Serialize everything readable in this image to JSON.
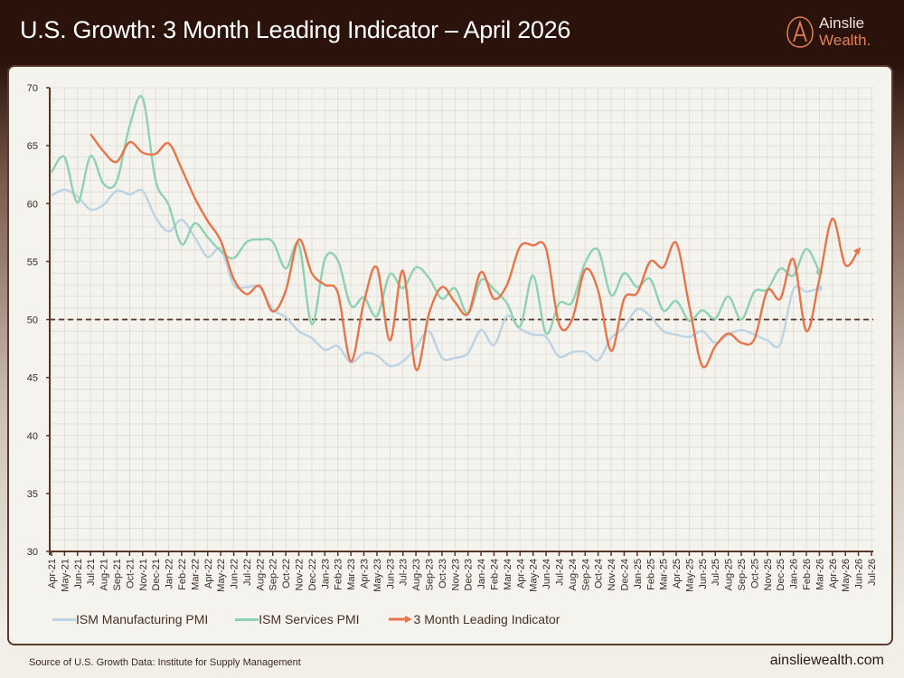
{
  "header": {
    "title": "U.S. Growth: 3 Month Leading Indicator – April 2026"
  },
  "logo": {
    "line1": "Ainslie",
    "line2": "Wealth.",
    "brand_color": "#e0805a"
  },
  "footer": {
    "source": "Source of U.S. Growth Data: Institute for Supply Management",
    "website": "ainsliewealth.com"
  },
  "chart_data": {
    "type": "line",
    "title": "U.S. Growth: 3 Month Leading Indicator – April 2026",
    "xlabel": "",
    "ylabel": "",
    "ylim": [
      30,
      70
    ],
    "yticks": [
      30,
      35,
      40,
      45,
      50,
      55,
      60,
      65,
      70
    ],
    "reference_line": {
      "value": 50,
      "style": "dashed",
      "color": "#5a3424"
    },
    "grid": true,
    "legend_position": "bottom-left",
    "categories": [
      "Apr-21",
      "May-21",
      "Jun-21",
      "Jul-21",
      "Aug-21",
      "Sep-21",
      "Oct-21",
      "Nov-21",
      "Dec-21",
      "Jan-22",
      "Feb-22",
      "Mar-22",
      "Apr-22",
      "May-22",
      "Jun-22",
      "Jul-22",
      "Aug-22",
      "Sep-22",
      "Oct-22",
      "Nov-22",
      "Dec-22",
      "Jan-23",
      "Feb-23",
      "Mar-23",
      "Apr-23",
      "May-23",
      "Jun-23",
      "Jul-23",
      "Aug-23",
      "Sep-23",
      "Oct-23",
      "Nov-23",
      "Dec-23",
      "Jan-24",
      "Feb-24",
      "Mar-24",
      "Apr-24",
      "May-24",
      "Jun-24",
      "Jul-24",
      "Aug-24",
      "Sep-24",
      "Oct-24",
      "Nov-24",
      "Dec-24",
      "Jan-25",
      "Feb-25",
      "Mar-25",
      "Apr-25",
      "May-25",
      "Jun-25",
      "Jul-25",
      "Aug-25",
      "Sep-25",
      "Oct-25",
      "Nov-25",
      "Dec-25",
      "Jan-26",
      "Feb-26",
      "Mar-26",
      "Apr-26",
      "May-26",
      "Jun-26",
      "Jul-26"
    ],
    "series": [
      {
        "name": "ISM Manufacturing PMI",
        "color": "#bcd3e4",
        "end_marker": "dot",
        "values": [
          60.7,
          61.2,
          60.6,
          59.5,
          59.9,
          61.1,
          60.8,
          61.1,
          58.8,
          57.6,
          58.6,
          57.1,
          55.4,
          56.1,
          53.0,
          52.8,
          52.8,
          50.9,
          50.2,
          49.0,
          48.4,
          47.4,
          47.7,
          46.3,
          47.1,
          46.9,
          46.0,
          46.4,
          47.6,
          49.0,
          46.7,
          46.7,
          47.1,
          49.1,
          47.8,
          50.3,
          49.2,
          48.7,
          48.5,
          46.8,
          47.2,
          47.2,
          46.5,
          48.4,
          49.3,
          50.9,
          50.3,
          49.0,
          48.7,
          48.5,
          49.0,
          48.0,
          48.7,
          49.1,
          48.7,
          48.2,
          47.9,
          52.6,
          52.4,
          52.7,
          null,
          null,
          null,
          null
        ]
      },
      {
        "name": "ISM Services PMI",
        "color": "#8fd1b1",
        "end_marker": "dot",
        "values": [
          62.7,
          64.0,
          60.1,
          64.1,
          61.7,
          61.9,
          66.7,
          69.1,
          62.0,
          59.9,
          56.5,
          58.3,
          57.1,
          55.9,
          55.3,
          56.7,
          56.9,
          56.7,
          54.4,
          56.5,
          49.6,
          55.2,
          55.1,
          51.2,
          51.9,
          50.3,
          53.9,
          52.7,
          54.5,
          53.6,
          51.8,
          52.7,
          50.5,
          53.4,
          52.6,
          51.4,
          49.4,
          53.8,
          48.8,
          51.4,
          51.5,
          54.9,
          56.0,
          52.1,
          54.0,
          52.8,
          53.5,
          50.8,
          51.6,
          49.9,
          50.8,
          50.1,
          52.0,
          50.0,
          52.4,
          52.6,
          54.4,
          53.8,
          56.1,
          54.1,
          null,
          null,
          null,
          null
        ]
      },
      {
        "name": "3 Month Leading Indicator",
        "color": "#e8744a",
        "end_marker": "arrow",
        "values": [
          null,
          null,
          null,
          66.0,
          64.5,
          63.6,
          65.3,
          64.4,
          64.3,
          65.2,
          63.0,
          60.5,
          58.5,
          56.8,
          53.5,
          52.2,
          52.9,
          50.7,
          52.5,
          56.9,
          54.0,
          53.0,
          52.3,
          46.4,
          51.5,
          54.5,
          48.2,
          54.2,
          45.7,
          50.5,
          52.8,
          51.5,
          50.5,
          54.1,
          51.8,
          53.0,
          56.3,
          56.4,
          56.1,
          49.6,
          50.0,
          54.3,
          52.5,
          47.3,
          51.8,
          52.3,
          55.0,
          54.5,
          56.6,
          51.2,
          46.0,
          47.7,
          48.8,
          48.0,
          48.3,
          52.5,
          51.8,
          55.2,
          49.0,
          53.5,
          58.7,
          54.7,
          56.0,
          null
        ]
      }
    ]
  }
}
